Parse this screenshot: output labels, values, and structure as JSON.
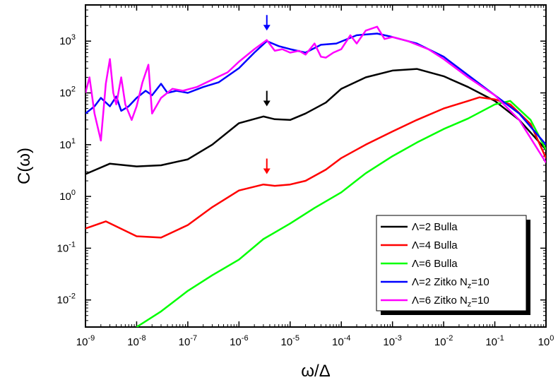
{
  "chart_data": {
    "type": "line",
    "xscale": "log",
    "yscale": "log",
    "xlim": [
      1e-09,
      1
    ],
    "ylim": [
      0.003,
      5000
    ],
    "xlabel": "ω/Δ",
    "ylabel": "C(ω)",
    "legend_position": "bottom-right",
    "xticks": [
      {
        "v": 1e-09,
        "base": "10",
        "exp": "-9"
      },
      {
        "v": 1e-08,
        "base": "10",
        "exp": "-8"
      },
      {
        "v": 1e-07,
        "base": "10",
        "exp": "-7"
      },
      {
        "v": 1e-06,
        "base": "10",
        "exp": "-6"
      },
      {
        "v": 1e-05,
        "base": "10",
        "exp": "-5"
      },
      {
        "v": 0.0001,
        "base": "10",
        "exp": "-4"
      },
      {
        "v": 0.001,
        "base": "10",
        "exp": "-3"
      },
      {
        "v": 0.01,
        "base": "10",
        "exp": "-2"
      },
      {
        "v": 0.1,
        "base": "10",
        "exp": "-1"
      },
      {
        "v": 1,
        "base": "10",
        "exp": "0"
      }
    ],
    "yticks": [
      {
        "v": 0.01,
        "base": "10",
        "exp": "-2"
      },
      {
        "v": 0.1,
        "base": "10",
        "exp": "-1"
      },
      {
        "v": 1,
        "base": "10",
        "exp": "0"
      },
      {
        "v": 10,
        "base": "10",
        "exp": "1"
      },
      {
        "v": 100,
        "base": "10",
        "exp": "2"
      },
      {
        "v": 1000,
        "base": "10",
        "exp": "3"
      }
    ],
    "series": [
      {
        "name": "Λ=2 Bulla",
        "color": "#000000",
        "x": [
          1e-09,
          3e-09,
          1e-08,
          3e-08,
          1e-07,
          3e-07,
          1e-06,
          3e-06,
          5e-06,
          1e-05,
          2e-05,
          5e-05,
          0.0001,
          0.0003,
          0.001,
          0.003,
          0.01,
          0.03,
          0.1,
          0.3,
          1
        ],
        "y": [
          2.7,
          4.3,
          3.8,
          4.0,
          5.2,
          10,
          26,
          35,
          31,
          30,
          40,
          65,
          120,
          200,
          270,
          290,
          210,
          130,
          70,
          30,
          8
        ]
      },
      {
        "name": "Λ=4 Bulla",
        "color": "#ff0000",
        "x": [
          1e-09,
          2.5e-09,
          1e-08,
          3e-08,
          1e-07,
          3e-07,
          1e-06,
          3e-06,
          5e-06,
          1e-05,
          2e-05,
          5e-05,
          0.0001,
          0.0003,
          0.001,
          0.003,
          0.01,
          0.03,
          0.05,
          0.1,
          0.2,
          0.5,
          1
        ],
        "y": [
          0.24,
          0.33,
          0.17,
          0.16,
          0.28,
          0.62,
          1.3,
          1.7,
          1.6,
          1.7,
          2.0,
          3.3,
          5.5,
          10,
          18,
          30,
          50,
          70,
          82,
          75,
          60,
          25,
          5.5
        ]
      },
      {
        "name": "Λ=6 Bulla",
        "color": "#00ff00",
        "x": [
          1e-08,
          3e-08,
          1e-07,
          3e-07,
          1e-06,
          3e-06,
          1e-05,
          3e-05,
          0.0001,
          0.0003,
          0.001,
          0.003,
          0.01,
          0.03,
          0.1,
          0.2,
          0.5,
          1
        ],
        "y": [
          0.003,
          0.006,
          0.015,
          0.03,
          0.06,
          0.15,
          0.3,
          0.6,
          1.2,
          2.8,
          6,
          11,
          20,
          32,
          60,
          70,
          30,
          8
        ]
      },
      {
        "name": "Λ=2 Zitko N_z=10",
        "color": "#0000ff",
        "x": [
          1e-09,
          1.5e-09,
          2e-09,
          3e-09,
          4e-09,
          5e-09,
          7e-09,
          1e-08,
          1.5e-08,
          2e-08,
          3e-08,
          4e-08,
          6e-08,
          1e-07,
          2e-07,
          4e-07,
          1e-06,
          2e-06,
          3.5e-06,
          6e-06,
          1e-05,
          2e-05,
          4e-05,
          8e-05,
          0.0002,
          0.0005,
          0.001,
          0.003,
          0.01,
          0.03,
          0.1,
          0.3,
          1
        ],
        "y": [
          40,
          55,
          80,
          55,
          85,
          45,
          55,
          80,
          110,
          90,
          150,
          100,
          110,
          100,
          130,
          160,
          300,
          600,
          1000,
          800,
          700,
          600,
          850,
          900,
          1300,
          1400,
          1200,
          900,
          500,
          220,
          90,
          40,
          10
        ]
      },
      {
        "name": "Λ=6 Zitko N_z=10",
        "color": "#ff00ff",
        "x": [
          1e-09,
          1.2e-09,
          1.5e-09,
          2e-09,
          2.5e-09,
          3e-09,
          3.5e-09,
          4e-09,
          5e-09,
          6e-09,
          8e-09,
          1e-08,
          1.3e-08,
          1.7e-08,
          2e-08,
          3e-08,
          5e-08,
          8e-08,
          1.5e-07,
          3e-07,
          6e-07,
          1e-06,
          2e-06,
          3.5e-06,
          5e-06,
          7e-06,
          1e-05,
          1.5e-05,
          2e-05,
          3e-05,
          4e-05,
          5e-05,
          7e-05,
          0.0001,
          0.00015,
          0.0002,
          0.0003,
          0.0005,
          0.0007,
          0.001,
          0.002,
          0.005,
          0.01,
          0.03,
          0.1,
          0.3,
          1
        ],
        "y": [
          100,
          200,
          40,
          12,
          150,
          450,
          100,
          60,
          200,
          60,
          30,
          55,
          160,
          350,
          40,
          80,
          120,
          110,
          130,
          180,
          250,
          400,
          700,
          1050,
          650,
          700,
          600,
          650,
          550,
          900,
          500,
          480,
          600,
          700,
          1300,
          900,
          1600,
          1900,
          1100,
          1200,
          1000,
          700,
          450,
          200,
          90,
          30,
          4.5
        ]
      }
    ],
    "annotations": [
      {
        "type": "arrow",
        "x": 3.5e-06,
        "y": 1600,
        "color": "#0000ff"
      },
      {
        "type": "arrow",
        "x": 3.5e-06,
        "y": 55,
        "color": "#000000"
      },
      {
        "type": "arrow",
        "x": 3.5e-06,
        "y": 2.7,
        "color": "#ff0000"
      }
    ]
  }
}
